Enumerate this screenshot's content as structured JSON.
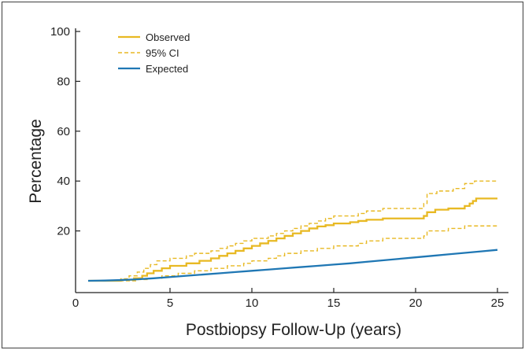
{
  "colors": {
    "observed": "#e8b923",
    "expected": "#1f77b4",
    "frame": "#555555",
    "axis": "#222222"
  },
  "chart_data": {
    "type": "line",
    "title": "",
    "xlabel": "Postbiopsy Follow-Up (years)",
    "ylabel": "Percentage",
    "xlim": [
      0,
      25
    ],
    "ylim": [
      0,
      100
    ],
    "x_ticks": [
      0,
      5,
      10,
      15,
      20,
      25
    ],
    "y_ticks": [
      20,
      40,
      60,
      80,
      100
    ],
    "grid": false,
    "legend": {
      "position": "top-left",
      "entries": [
        "Observed",
        "95% CI",
        "Expected"
      ]
    },
    "series": [
      {
        "name": "Observed",
        "style": "solid",
        "color": "#e8b923",
        "step": true,
        "x": [
          0,
          2.0,
          2.8,
          3.3,
          3.6,
          4.0,
          4.5,
          5.0,
          6.0,
          6.8,
          7.5,
          8.0,
          8.5,
          9.0,
          9.5,
          10.0,
          10.5,
          11.0,
          11.5,
          12.0,
          12.5,
          13.0,
          13.5,
          14.0,
          14.5,
          15.0,
          16.0,
          16.5,
          17.0,
          18.0,
          20.5,
          20.7,
          21.2,
          22.0,
          23.0,
          23.3,
          23.5,
          23.7,
          25.0
        ],
        "y": [
          0,
          0.4,
          1,
          2,
          3,
          4,
          5,
          6,
          7,
          8,
          9,
          10,
          11,
          12,
          13,
          14,
          15,
          16,
          17,
          18,
          19,
          20,
          21,
          21.8,
          22.3,
          23,
          23.5,
          24,
          24.5,
          25,
          26,
          27.5,
          28.5,
          29,
          30,
          31,
          32,
          33,
          33
        ]
      },
      {
        "name": "95% CI (upper)",
        "style": "dashed",
        "color": "#e8b923",
        "step": true,
        "x": [
          0,
          2.0,
          2.5,
          3.0,
          3.4,
          3.8,
          4.2,
          5.0,
          6.0,
          6.5,
          7.5,
          8.0,
          8.5,
          9.0,
          9.5,
          10.0,
          11.0,
          11.5,
          12.0,
          12.5,
          13.0,
          13.5,
          14.0,
          14.5,
          15.0,
          16.5,
          17.0,
          18.0,
          20.5,
          20.7,
          21.3,
          22.3,
          23.0,
          23.6,
          25.0
        ],
        "y": [
          0,
          0.8,
          2,
          3.5,
          5,
          6.5,
          8,
          9,
          10,
          11,
          12,
          13,
          14,
          15,
          16,
          17,
          18,
          19,
          20,
          21,
          22,
          23,
          24,
          25,
          26,
          27,
          28,
          29,
          31,
          35,
          36,
          37,
          39,
          40,
          40
        ]
      },
      {
        "name": "95% CI (lower)",
        "style": "dashed",
        "color": "#e8b923",
        "step": true,
        "x": [
          0,
          3.0,
          3.6,
          4.5,
          5.5,
          6.5,
          7.5,
          8.5,
          9.5,
          10.0,
          11.0,
          11.5,
          12.0,
          13.0,
          14.0,
          15.0,
          16.5,
          17.0,
          18.0,
          20.5,
          20.7,
          22.0,
          23.0,
          25.0
        ],
        "y": [
          0,
          0.5,
          1,
          2,
          3,
          4,
          5,
          6,
          7,
          8,
          9,
          10,
          11,
          12,
          13,
          14,
          15,
          16,
          17,
          18,
          20,
          21,
          22,
          22
        ]
      },
      {
        "name": "Expected",
        "style": "solid",
        "color": "#1f77b4",
        "step": false,
        "x": [
          0,
          1,
          2,
          3,
          4,
          5,
          6,
          7,
          8,
          9,
          10,
          11,
          12,
          13,
          14,
          15,
          16,
          17,
          18,
          19,
          20,
          21,
          22,
          23,
          24,
          25
        ],
        "y": [
          0,
          0.1,
          0.3,
          0.6,
          1.0,
          1.5,
          2.0,
          2.5,
          3.0,
          3.5,
          4.0,
          4.5,
          5.0,
          5.5,
          6.0,
          6.5,
          7.0,
          7.6,
          8.2,
          8.8,
          9.4,
          10.0,
          10.6,
          11.2,
          11.8,
          12.4
        ]
      }
    ]
  }
}
